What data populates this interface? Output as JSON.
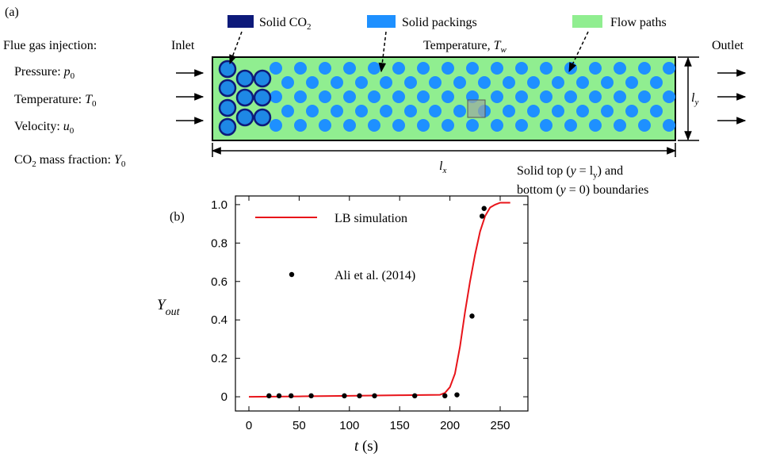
{
  "panel_a": {
    "label": "(a)",
    "legend": {
      "solid_co2": [
        "Solid CO",
        "2"
      ],
      "solid_packings": "Solid packings",
      "flow_paths": "Flow paths"
    },
    "injection": {
      "heading": "Flue gas injection:",
      "pressure": [
        "Pressure: ",
        "p",
        "0"
      ],
      "temperature": [
        "Temperature: ",
        "T",
        "0"
      ],
      "velocity": [
        "Velocity: ",
        "u",
        "0"
      ],
      "mass_fraction": [
        "CO",
        "2",
        " mass fraction: ",
        "Y",
        "0"
      ]
    },
    "inlet": "Inlet",
    "outlet": "Outlet",
    "wall_temperature": [
      "Temperature, ",
      "T",
      "w"
    ],
    "length_x": [
      "l",
      "x"
    ],
    "length_y": [
      "l",
      "y"
    ],
    "boundaries": [
      [
        "Solid top (",
        "y",
        " = l",
        "y",
        ") and"
      ],
      [
        "bottom (",
        "y",
        " = 0) boundaries"
      ]
    ]
  },
  "chart_data": {
    "type": "line",
    "panel_label": "(b)",
    "xlabel": [
      "t",
      " (s)"
    ],
    "ylabel": [
      "Y",
      "out"
    ],
    "xlim": [
      -13.4,
      277.6
    ],
    "ylim": [
      -0.074,
      1.045
    ],
    "xticks": [
      0,
      50,
      100,
      150,
      200,
      250
    ],
    "yticks": [
      0,
      0.2,
      0.4,
      0.6,
      0.8,
      {
        "value": 1,
        "label": "1.0"
      }
    ],
    "legend": "upper left",
    "series": [
      {
        "name": "LB simulation",
        "type": "line",
        "color": "#e8141a",
        "x": [
          0,
          50,
          100,
          150,
          190,
          195,
          200,
          205,
          210,
          215,
          220,
          225,
          230,
          235,
          240,
          245,
          250,
          260
        ],
        "values": [
          0.0,
          0.002,
          0.005,
          0.008,
          0.01,
          0.02,
          0.05,
          0.12,
          0.26,
          0.44,
          0.6,
          0.74,
          0.86,
          0.94,
          0.985,
          1.0,
          1.01,
          1.01
        ]
      },
      {
        "name": "Ali et al. (2014)",
        "type": "scatter",
        "color": "#000000",
        "x": [
          20,
          30,
          42,
          62,
          95,
          110,
          125,
          165,
          195,
          207,
          222,
          232,
          234
        ],
        "values": [
          0.005,
          0.005,
          0.005,
          0.005,
          0.005,
          0.005,
          0.005,
          0.005,
          0.005,
          0.01,
          0.42,
          0.94,
          0.98
        ]
      }
    ]
  }
}
